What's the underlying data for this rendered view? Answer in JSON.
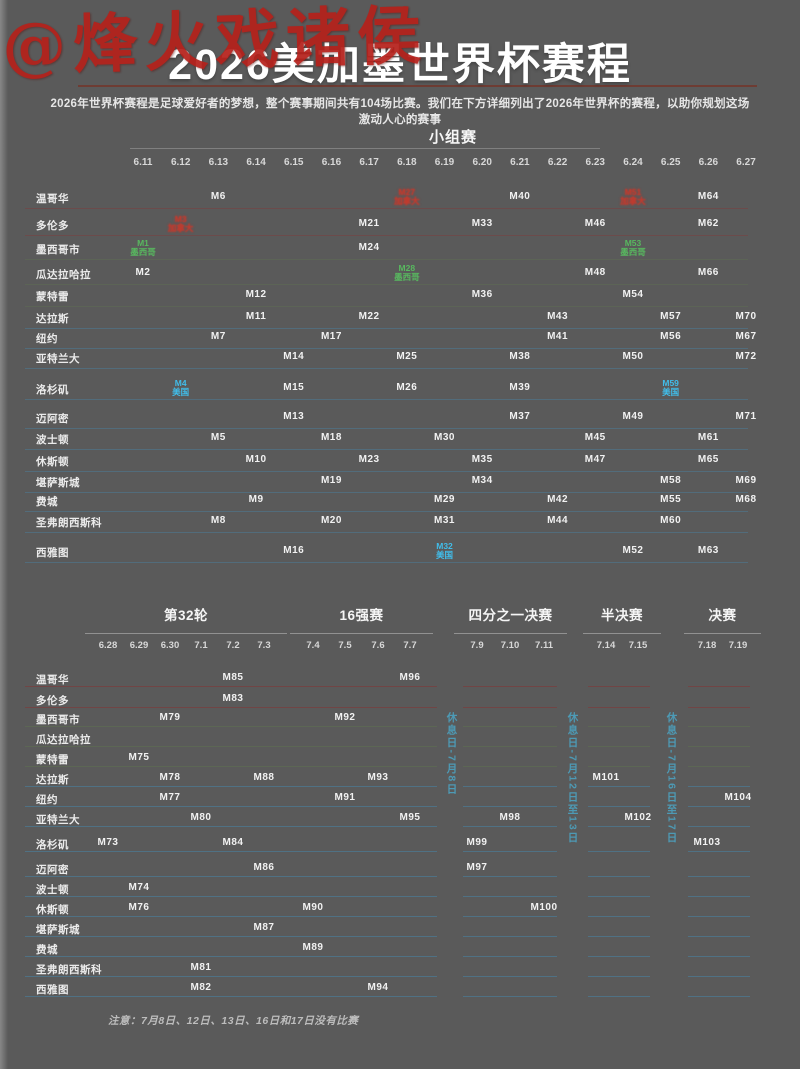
{
  "watermark": "@烽火戏诸侯",
  "title": "2026美加墨世界杯赛程",
  "subtitle": "2026年世界杯赛程是足球爱好者的梦想，整个赛事期间共有104场比赛。我们在下方详细列出了2026年世界杯的赛程，以助你规划这场激动人心的赛事",
  "note": "注意：7月8日、12日、13日、16日和17日没有比赛",
  "colors": {
    "background": "#5a5a5a",
    "title_divider": "#6e3c33",
    "watermark_red": "#b5211b",
    "canada_accent": "#c23b2e",
    "mexico_accent": "#58b85f",
    "usa_accent": "#41bdea",
    "canada_line": "#7e3b3b",
    "mexico_line": "#5d6e52",
    "usa_line": "#4a7e9b",
    "rest_label": "#4d9ab5"
  },
  "chart_data": {
    "type": "table",
    "title": "2026美加墨世界杯赛程",
    "cities": [
      {
        "name": "温哥华",
        "country": "canada"
      },
      {
        "name": "多伦多",
        "country": "canada"
      },
      {
        "name": "墨西哥市",
        "country": "mexico"
      },
      {
        "name": "瓜达拉哈拉",
        "country": "mexico"
      },
      {
        "name": "蒙特雷",
        "country": "mexico"
      },
      {
        "name": "达拉斯",
        "country": "usa"
      },
      {
        "name": "纽约",
        "country": "usa"
      },
      {
        "name": "亚特兰大",
        "country": "usa"
      },
      {
        "name": "洛杉矶",
        "country": "usa"
      },
      {
        "name": "迈阿密",
        "country": "usa"
      },
      {
        "name": "波士顿",
        "country": "usa"
      },
      {
        "name": "休斯顿",
        "country": "usa"
      },
      {
        "name": "堪萨斯城",
        "country": "usa"
      },
      {
        "name": "费城",
        "country": "usa"
      },
      {
        "name": "圣弗朗西斯科",
        "country": "usa"
      },
      {
        "name": "西雅图",
        "country": "usa"
      }
    ],
    "group_stage": {
      "label": "小组赛",
      "dates": [
        "6.11",
        "6.12",
        "6.13",
        "6.14",
        "6.15",
        "6.16",
        "6.17",
        "6.18",
        "6.19",
        "6.20",
        "6.21",
        "6.22",
        "6.23",
        "6.24",
        "6.25",
        "6.26",
        "6.27"
      ],
      "matches": [
        {
          "m": "M1",
          "city": "墨西哥市",
          "date": "6.11",
          "tag": "墨西哥",
          "highlight": "mexico"
        },
        {
          "m": "M2",
          "city": "瓜达拉哈拉",
          "date": "6.11"
        },
        {
          "m": "M3",
          "city": "多伦多",
          "date": "6.12",
          "tag": "加拿大",
          "highlight": "canada"
        },
        {
          "m": "M4",
          "city": "洛杉矶",
          "date": "6.12",
          "tag": "美国",
          "highlight": "usa"
        },
        {
          "m": "M5",
          "city": "波士顿",
          "date": "6.13"
        },
        {
          "m": "M6",
          "city": "温哥华",
          "date": "6.13"
        },
        {
          "m": "M7",
          "city": "纽约",
          "date": "6.13"
        },
        {
          "m": "M8",
          "city": "圣弗朗西斯科",
          "date": "6.13"
        },
        {
          "m": "M9",
          "city": "费城",
          "date": "6.14"
        },
        {
          "m": "M10",
          "city": "休斯顿",
          "date": "6.14"
        },
        {
          "m": "M11",
          "city": "达拉斯",
          "date": "6.14"
        },
        {
          "m": "M12",
          "city": "蒙特雷",
          "date": "6.14"
        },
        {
          "m": "M13",
          "city": "迈阿密",
          "date": "6.15"
        },
        {
          "m": "M14",
          "city": "亚特兰大",
          "date": "6.15"
        },
        {
          "m": "M15",
          "city": "洛杉矶",
          "date": "6.15"
        },
        {
          "m": "M16",
          "city": "西雅图",
          "date": "6.15"
        },
        {
          "m": "M17",
          "city": "纽约",
          "date": "6.16"
        },
        {
          "m": "M18",
          "city": "波士顿",
          "date": "6.16"
        },
        {
          "m": "M19",
          "city": "堪萨斯城",
          "date": "6.16"
        },
        {
          "m": "M20",
          "city": "圣弗朗西斯科",
          "date": "6.16"
        },
        {
          "m": "M21",
          "city": "多伦多",
          "date": "6.17"
        },
        {
          "m": "M22",
          "city": "达拉斯",
          "date": "6.17"
        },
        {
          "m": "M23",
          "city": "休斯顿",
          "date": "6.17"
        },
        {
          "m": "M24",
          "city": "墨西哥市",
          "date": "6.17"
        },
        {
          "m": "M25",
          "city": "亚特兰大",
          "date": "6.18"
        },
        {
          "m": "M26",
          "city": "洛杉矶",
          "date": "6.18"
        },
        {
          "m": "M27",
          "city": "温哥华",
          "date": "6.18",
          "tag": "加拿大",
          "highlight": "canada"
        },
        {
          "m": "M28",
          "city": "瓜达拉哈拉",
          "date": "6.18",
          "tag": "墨西哥",
          "highlight": "mexico"
        },
        {
          "m": "M29",
          "city": "费城",
          "date": "6.19"
        },
        {
          "m": "M30",
          "city": "波士顿",
          "date": "6.19"
        },
        {
          "m": "M31",
          "city": "圣弗朗西斯科",
          "date": "6.19"
        },
        {
          "m": "M32",
          "city": "西雅图",
          "date": "6.19",
          "tag": "美国",
          "highlight": "usa"
        },
        {
          "m": "M33",
          "city": "多伦多",
          "date": "6.20"
        },
        {
          "m": "M34",
          "city": "堪萨斯城",
          "date": "6.20"
        },
        {
          "m": "M35",
          "city": "休斯顿",
          "date": "6.20"
        },
        {
          "m": "M36",
          "city": "蒙特雷",
          "date": "6.20"
        },
        {
          "m": "M37",
          "city": "迈阿密",
          "date": "6.21"
        },
        {
          "m": "M38",
          "city": "亚特兰大",
          "date": "6.21"
        },
        {
          "m": "M39",
          "city": "洛杉矶",
          "date": "6.21"
        },
        {
          "m": "M40",
          "city": "温哥华",
          "date": "6.21"
        },
        {
          "m": "M41",
          "city": "纽约",
          "date": "6.22"
        },
        {
          "m": "M42",
          "city": "费城",
          "date": "6.22"
        },
        {
          "m": "M43",
          "city": "达拉斯",
          "date": "6.22"
        },
        {
          "m": "M44",
          "city": "圣弗朗西斯科",
          "date": "6.22"
        },
        {
          "m": "M45",
          "city": "波士顿",
          "date": "6.23"
        },
        {
          "m": "M46",
          "city": "多伦多",
          "date": "6.23"
        },
        {
          "m": "M47",
          "city": "休斯顿",
          "date": "6.23"
        },
        {
          "m": "M48",
          "city": "瓜达拉哈拉",
          "date": "6.23"
        },
        {
          "m": "M49",
          "city": "迈阿密",
          "date": "6.24"
        },
        {
          "m": "M50",
          "city": "亚特兰大",
          "date": "6.24"
        },
        {
          "m": "M51",
          "city": "温哥华",
          "date": "6.24",
          "tag": "加拿大",
          "highlight": "canada"
        },
        {
          "m": "M52",
          "city": "西雅图",
          "date": "6.24"
        },
        {
          "m": "M53",
          "city": "墨西哥市",
          "date": "6.24",
          "tag": "墨西哥",
          "highlight": "mexico"
        },
        {
          "m": "M54",
          "city": "蒙特雷",
          "date": "6.24"
        },
        {
          "m": "M55",
          "city": "费城",
          "date": "6.25"
        },
        {
          "m": "M56",
          "city": "纽约",
          "date": "6.25"
        },
        {
          "m": "M57",
          "city": "达拉斯",
          "date": "6.25"
        },
        {
          "m": "M58",
          "city": "堪萨斯城",
          "date": "6.25"
        },
        {
          "m": "M59",
          "city": "洛杉矶",
          "date": "6.25",
          "tag": "美国",
          "highlight": "usa"
        },
        {
          "m": "M60",
          "city": "圣弗朗西斯科",
          "date": "6.25"
        },
        {
          "m": "M61",
          "city": "波士顿",
          "date": "6.26"
        },
        {
          "m": "M62",
          "city": "多伦多",
          "date": "6.26"
        },
        {
          "m": "M63",
          "city": "西雅图",
          "date": "6.26"
        },
        {
          "m": "M64",
          "city": "温哥华",
          "date": "6.26"
        },
        {
          "m": "M65",
          "city": "休斯顿",
          "date": "6.26"
        },
        {
          "m": "M66",
          "city": "瓜达拉哈拉",
          "date": "6.26"
        },
        {
          "m": "M67",
          "city": "纽约",
          "date": "6.27"
        },
        {
          "m": "M68",
          "city": "费城",
          "date": "6.27"
        },
        {
          "m": "M69",
          "city": "堪萨斯城",
          "date": "6.27"
        },
        {
          "m": "M70",
          "city": "达拉斯",
          "date": "6.27"
        },
        {
          "m": "M71",
          "city": "迈阿密",
          "date": "6.27"
        },
        {
          "m": "M72",
          "city": "亚特兰大",
          "date": "6.27"
        }
      ]
    },
    "knockout": {
      "sections": [
        {
          "label": "第32轮",
          "dates": [
            "6.28",
            "6.29",
            "6.30",
            "7.1",
            "7.2",
            "7.3"
          ]
        },
        {
          "label": "16强赛",
          "dates": [
            "7.4",
            "7.5",
            "7.6",
            "7.7"
          ]
        },
        {
          "label": "四分之一决赛",
          "dates": [
            "7.9",
            "7.10",
            "7.11"
          ]
        },
        {
          "label": "半决赛",
          "dates": [
            "7.14",
            "7.15"
          ]
        },
        {
          "label": "决赛",
          "dates": [
            "7.18",
            "7.19"
          ]
        }
      ],
      "rest_day_labels": [
        "休息日-7月8日",
        "休息日-7月12日至13日",
        "休息日-7月16日至17日"
      ],
      "matches": [
        {
          "m": "M73",
          "city": "洛杉矶",
          "date": "6.28"
        },
        {
          "m": "M74",
          "city": "波士顿",
          "date": "6.29"
        },
        {
          "m": "M75",
          "city": "蒙特雷",
          "date": "6.29"
        },
        {
          "m": "M76",
          "city": "休斯顿",
          "date": "6.29"
        },
        {
          "m": "M77",
          "city": "纽约",
          "date": "6.30"
        },
        {
          "m": "M78",
          "city": "达拉斯",
          "date": "6.30"
        },
        {
          "m": "M79",
          "city": "墨西哥市",
          "date": "6.30"
        },
        {
          "m": "M80",
          "city": "亚特兰大",
          "date": "7.1"
        },
        {
          "m": "M81",
          "city": "圣弗朗西斯科",
          "date": "7.1"
        },
        {
          "m": "M82",
          "city": "西雅图",
          "date": "7.1"
        },
        {
          "m": "M83",
          "city": "多伦多",
          "date": "7.2"
        },
        {
          "m": "M84",
          "city": "洛杉矶",
          "date": "7.2"
        },
        {
          "m": "M85",
          "city": "温哥华",
          "date": "7.2"
        },
        {
          "m": "M86",
          "city": "迈阿密",
          "date": "7.3"
        },
        {
          "m": "M87",
          "city": "堪萨斯城",
          "date": "7.3"
        },
        {
          "m": "M88",
          "city": "达拉斯",
          "date": "7.3"
        },
        {
          "m": "M89",
          "city": "费城",
          "date": "7.4"
        },
        {
          "m": "M90",
          "city": "休斯顿",
          "date": "7.4"
        },
        {
          "m": "M91",
          "city": "纽约",
          "date": "7.5"
        },
        {
          "m": "M92",
          "city": "墨西哥市",
          "date": "7.5"
        },
        {
          "m": "M93",
          "city": "达拉斯",
          "date": "7.6"
        },
        {
          "m": "M94",
          "city": "西雅图",
          "date": "7.6"
        },
        {
          "m": "M97",
          "city": "迈阿密",
          "date": "7.9"
        },
        {
          "m": "M95",
          "city": "亚特兰大",
          "date": "7.7"
        },
        {
          "m": "M96",
          "city": "温哥华",
          "date": "7.7"
        },
        {
          "m": "M98",
          "city": "亚特兰大",
          "date": "7.10"
        },
        {
          "m": "M99",
          "city": "洛杉矶",
          "date": "7.9"
        },
        {
          "m": "M100",
          "city": "休斯顿",
          "date": "7.11"
        },
        {
          "m": "M101",
          "city": "达拉斯",
          "date": "7.14"
        },
        {
          "m": "M102",
          "city": "亚特兰大",
          "date": "7.15"
        },
        {
          "m": "M103",
          "city": "洛杉矶",
          "date": "7.18"
        },
        {
          "m": "M104",
          "city": "纽约",
          "date": "7.19"
        }
      ]
    }
  }
}
